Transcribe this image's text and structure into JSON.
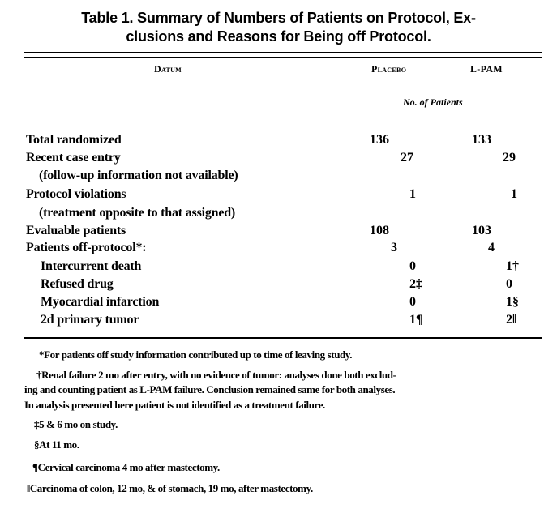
{
  "title": {
    "line1": "Table 1. Summary of Numbers of Patients on Protocol, Ex-",
    "line2": "clusions and Reasons for Being off Protocol."
  },
  "columns": {
    "datum": "Datum",
    "placebo": "Placebo",
    "lpam": "L-PAM",
    "units": "No. of Patients"
  },
  "rows": [
    {
      "label": "Total randomized",
      "placebo": "136",
      "lpam": "133"
    },
    {
      "label": "Recent case entry",
      "placebo": "27",
      "lpam": "29"
    },
    {
      "label": "(follow-up information not available)"
    },
    {
      "label": "Protocol violations",
      "placebo": "1",
      "lpam": "1"
    },
    {
      "label": "(treatment opposite to that assigned)"
    },
    {
      "label": "Evaluable patients",
      "placebo": "108",
      "lpam": "103"
    },
    {
      "label": "Patients off-protocol*:",
      "placebo": "3",
      "lpam": "4"
    },
    {
      "label": "Intercurrent death",
      "placebo": "0",
      "lpam": "1†"
    },
    {
      "label": "Refused drug",
      "placebo": "2‡",
      "lpam": "0"
    },
    {
      "label": "Myocardial infarction",
      "placebo": "0",
      "lpam": "1§"
    },
    {
      "label": "2d primary tumor",
      "placebo": "1¶",
      "lpam": "2‖"
    }
  ],
  "footnotes": [
    "*For patients off study information contributed up to time of leaving study.",
    "†Renal failure 2 mo after entry, with no evidence of tumor: analyses done both exclud-",
    "ing and counting patient as L-PAM failure. Conclusion remained same for both analyses.",
    "In analysis presented here patient is not identified as a treatment failure.",
    "‡5 & 6 mo on study.",
    "§At 11 mo.",
    "¶Cervical carcinoma 4 mo after mastectomy.",
    "‖Carcinoma of colon, 12 mo, & of stomach, 19 mo, after mastectomy."
  ]
}
